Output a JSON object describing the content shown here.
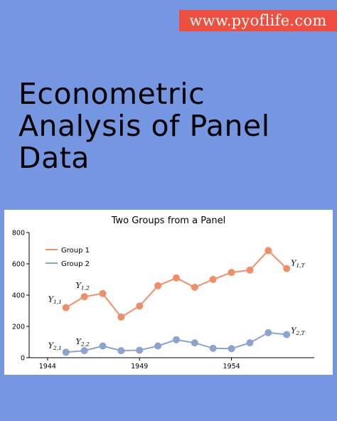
{
  "header": {
    "site_url": "www.pyoflife.com"
  },
  "book": {
    "title_lines": [
      "Econometric",
      "Analysis of Panel",
      "Data"
    ]
  },
  "chart_data": {
    "type": "line",
    "title": "Two Groups from a Panel",
    "xlabel": "",
    "ylabel": "",
    "x": [
      1945,
      1946,
      1947,
      1948,
      1949,
      1950,
      1951,
      1952,
      1953,
      1954,
      1955,
      1956,
      1957
    ],
    "xlim": [
      1943,
      1958.5
    ],
    "ylim": [
      0,
      800
    ],
    "xticks": [
      1944,
      1949,
      1954
    ],
    "yticks": [
      0,
      200,
      400,
      600,
      800
    ],
    "legend_position": "top-left",
    "grid": false,
    "series": [
      {
        "name": "Group 1",
        "color": "#f28e66",
        "values": [
          320,
          390,
          410,
          260,
          330,
          460,
          510,
          450,
          500,
          545,
          560,
          685,
          570
        ]
      },
      {
        "name": "Group 2",
        "color": "#8aa3d1",
        "values": [
          35,
          45,
          75,
          45,
          48,
          75,
          115,
          95,
          60,
          58,
          95,
          160,
          148
        ]
      }
    ],
    "annotations": [
      {
        "base": "Y",
        "sub": "1,1",
        "series": 0,
        "point": 0
      },
      {
        "base": "Y",
        "sub": "1,2",
        "series": 0,
        "point": 1
      },
      {
        "base": "Y",
        "sub": "1,T",
        "series": 0,
        "point": 12
      },
      {
        "base": "Y",
        "sub": "2,1",
        "series": 1,
        "point": 0
      },
      {
        "base": "Y",
        "sub": "2,2",
        "series": 1,
        "point": 1
      },
      {
        "base": "Y",
        "sub": "2,T",
        "series": 1,
        "point": 12
      }
    ]
  }
}
